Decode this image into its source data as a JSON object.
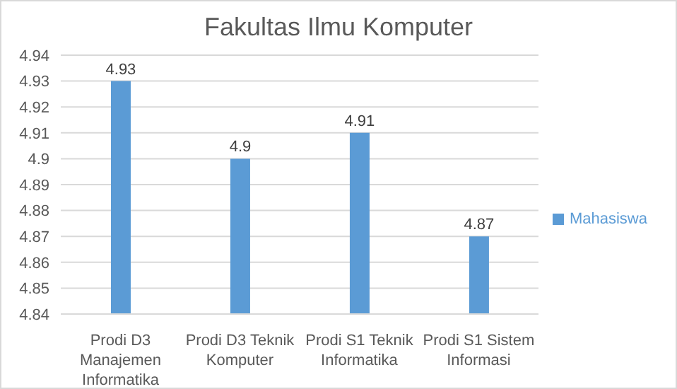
{
  "chart_data": {
    "type": "bar",
    "title": "Fakultas Ilmu Komputer",
    "categories": [
      "Prodi D3 Manajemen Informatika",
      "Prodi D3 Teknik Komputer",
      "Prodi S1 Teknik Informatika",
      "Prodi S1 Sistem Informasi"
    ],
    "series": [
      {
        "name": "Mahasiswa",
        "color": "#5b9bd5",
        "values": [
          4.93,
          4.9,
          4.91,
          4.87
        ]
      }
    ],
    "ylim": [
      4.84,
      4.94
    ],
    "yticks": [
      4.84,
      4.85,
      4.86,
      4.87,
      4.88,
      4.89,
      4.9,
      4.91,
      4.92,
      4.93,
      4.94
    ],
    "grid": "y",
    "legend": "right",
    "data_labels": true
  }
}
